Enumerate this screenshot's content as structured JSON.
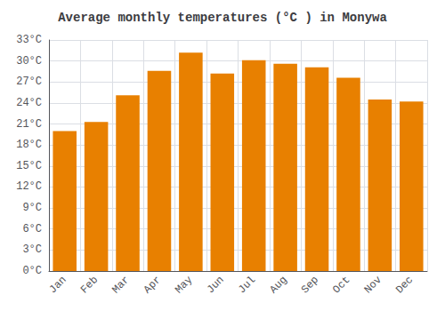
{
  "chart_data": {
    "type": "bar",
    "title": "Average monthly temperatures (°C ) in Monywa",
    "categories": [
      "Jan",
      "Feb",
      "Mar",
      "Apr",
      "May",
      "Jun",
      "Jul",
      "Aug",
      "Sep",
      "Oct",
      "Nov",
      "Dec"
    ],
    "values": [
      20.0,
      21.3,
      25.1,
      28.6,
      31.2,
      28.2,
      30.1,
      29.6,
      29.1,
      27.6,
      24.5,
      24.2
    ],
    "color": "#E88000",
    "ylim": [
      0,
      33
    ],
    "yticks": [
      {
        "value": 0,
        "label": "0°C"
      },
      {
        "value": 3,
        "label": "3°C"
      },
      {
        "value": 6,
        "label": "6°C"
      },
      {
        "value": 9,
        "label": "9°C"
      },
      {
        "value": 12,
        "label": "12°C"
      },
      {
        "value": 15,
        "label": "15°C"
      },
      {
        "value": 18,
        "label": "18°C"
      },
      {
        "value": 21,
        "label": "21°C"
      },
      {
        "value": 24,
        "label": "24°C"
      },
      {
        "value": 27,
        "label": "27°C"
      },
      {
        "value": 30,
        "label": "30°C"
      },
      {
        "value": 33,
        "label": "33°C"
      }
    ],
    "grid": true
  }
}
